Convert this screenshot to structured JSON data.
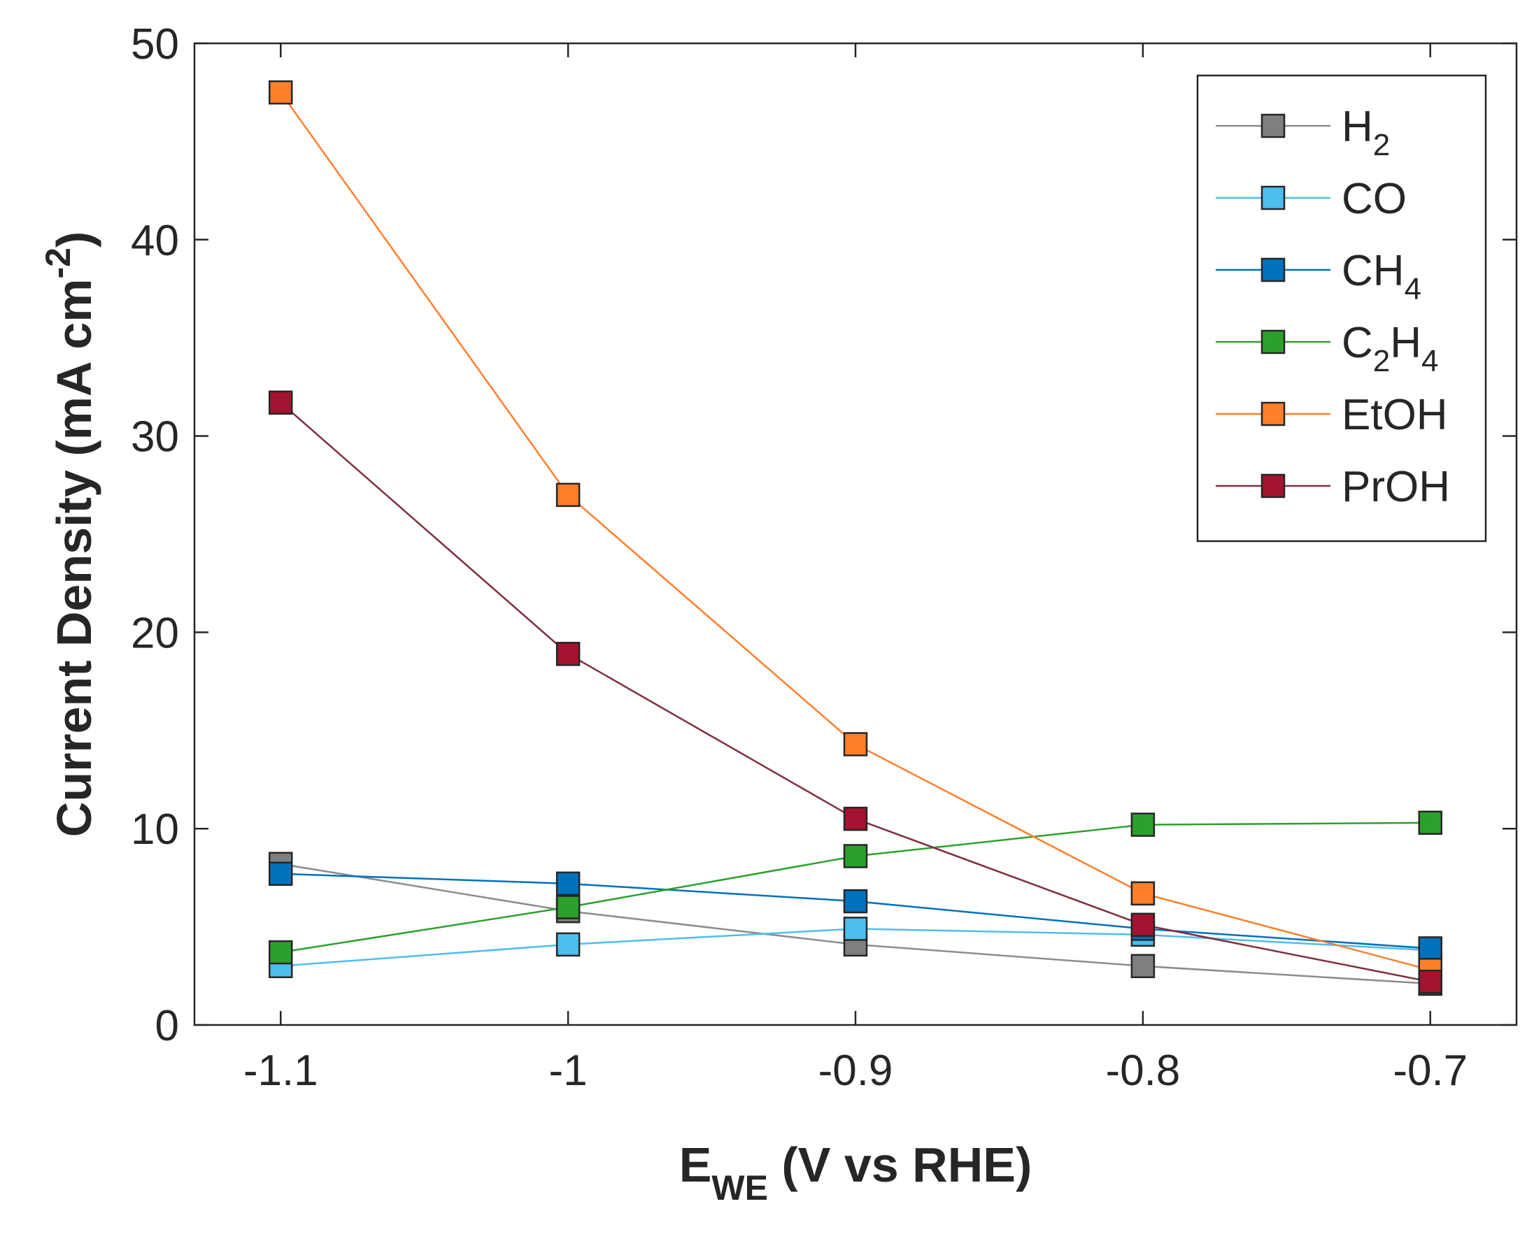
{
  "chart_data": {
    "type": "line",
    "title": "",
    "xlabel": {
      "main": "E",
      "sub": "WE",
      "rest": " (V vs RHE)"
    },
    "ylabel": {
      "main": "Current Density (mA cm",
      "sup": "-2",
      "end": ")"
    },
    "x": [
      -1.1,
      -1.0,
      -0.9,
      -0.8,
      -0.7
    ],
    "xlim": [
      -1.13,
      -0.67
    ],
    "ylim": [
      0,
      50
    ],
    "xticks": [
      -1.1,
      -1.0,
      -0.9,
      -0.8,
      -0.7
    ],
    "xtick_labels": [
      "-1.1",
      "-1",
      "-0.9",
      "-0.8",
      "-0.7"
    ],
    "yticks": [
      0,
      10,
      20,
      30,
      40,
      50
    ],
    "ytick_labels": [
      "0",
      "10",
      "20",
      "30",
      "40",
      "50"
    ],
    "grid": false,
    "legend_position": "top-right",
    "series": [
      {
        "name": "H2",
        "label_parts": [
          [
            "H",
            ""
          ],
          [
            "2",
            "sub"
          ]
        ],
        "color": "#7f7f7f",
        "line_color": "#8c8c8c",
        "values": [
          8.2,
          5.8,
          4.1,
          3.0,
          2.1
        ]
      },
      {
        "name": "CO",
        "label_parts": [
          [
            "CO",
            ""
          ]
        ],
        "color": "#4dbeee",
        "line_color": "#4dbeee",
        "values": [
          3.0,
          4.1,
          4.9,
          4.6,
          3.8
        ]
      },
      {
        "name": "CH4",
        "label_parts": [
          [
            "CH",
            ""
          ],
          [
            "4",
            "sub"
          ]
        ],
        "color": "#0072bd",
        "line_color": "#0072bd",
        "values": [
          7.7,
          7.2,
          6.3,
          4.9,
          3.9
        ]
      },
      {
        "name": "C2H4",
        "label_parts": [
          [
            "C",
            ""
          ],
          [
            "2",
            "sub"
          ],
          [
            "H",
            ""
          ],
          [
            "4",
            "sub"
          ]
        ],
        "color": "#2ca02c",
        "line_color": "#2ca02c",
        "values": [
          3.7,
          6.0,
          8.6,
          10.2,
          10.3
        ]
      },
      {
        "name": "EtOH",
        "label_parts": [
          [
            "EtOH",
            ""
          ]
        ],
        "color": "#ff7f2a",
        "line_color": "#ff7f2a",
        "values": [
          47.5,
          27.0,
          14.3,
          6.7,
          2.8
        ]
      },
      {
        "name": "PrOH",
        "label_parts": [
          [
            "PrOH",
            ""
          ]
        ],
        "color": "#a2142f",
        "line_color": "#7e2f3e",
        "values": [
          31.7,
          18.9,
          10.5,
          5.1,
          2.2
        ]
      }
    ]
  }
}
